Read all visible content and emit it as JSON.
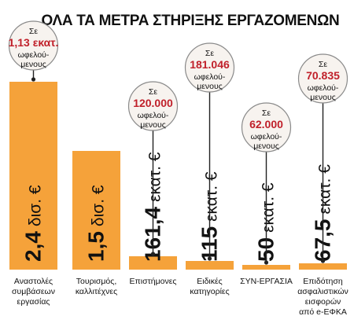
{
  "title": "ΟΛΑ ΤΑ ΜΕΤΡΑ ΣΤΗΡΙΞΗΣ ΕΡΓΑΖΟΜΕΝΩΝ",
  "colors": {
    "bar": "#f5a23a",
    "bubble_fill": "#f7f3ef",
    "bubble_stroke": "#8a8a8a",
    "highlight": "#c0202a",
    "text": "#111111"
  },
  "chart_data": {
    "type": "bar",
    "categories": [
      [
        "Αναστολές",
        "συμβάσεων",
        "εργασίας"
      ],
      [
        "Τουρισμός,",
        "καλλιτέχνες"
      ],
      [
        "Επιστήμονες"
      ],
      [
        "Ειδικές",
        "κατηγορίες"
      ],
      [
        "ΣΥΝ-ΕΡΓΑΣΙΑ"
      ],
      [
        "Επιδότηση",
        "ασφαλιστικών",
        "εισφορών",
        "από e-ΕΦΚΑ"
      ]
    ],
    "values_eur_millions": [
      2400,
      1500,
      161.4,
      115,
      50,
      67.5
    ],
    "value_labels": [
      {
        "num": "2,4",
        "unit": "δισ. €"
      },
      {
        "num": "1,5",
        "unit": "δισ. €"
      },
      {
        "num": "161,4",
        "unit": "εκατ. €"
      },
      {
        "num": "115",
        "unit": "εκατ. €"
      },
      {
        "num": "50",
        "unit": "εκατ. €"
      },
      {
        "num": "67,5",
        "unit": "εκατ. €"
      }
    ],
    "beneficiaries": [
      {
        "prefix": "Σε",
        "value": "1,13 εκατ.",
        "suffix": [
          "ωφελού-",
          "μενους"
        ]
      },
      null,
      {
        "prefix": "Σε",
        "value": "120.000",
        "suffix": [
          "ωφελού-",
          "μενους"
        ]
      },
      {
        "prefix": "Σε",
        "value": "181.046",
        "suffix": [
          "ωφελού-",
          "μενους"
        ]
      },
      {
        "prefix": "Σε",
        "value": "62.000",
        "suffix": [
          "ωφελού-",
          "μενους"
        ]
      },
      {
        "prefix": "Σε",
        "value": "70.835",
        "suffix": [
          "ωφελού-",
          "μενους"
        ]
      }
    ]
  }
}
